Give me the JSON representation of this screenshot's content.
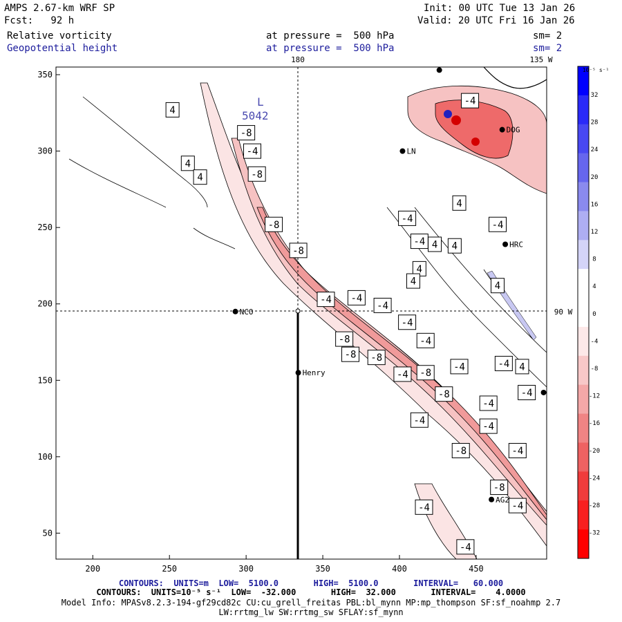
{
  "header": {
    "model": "AMPS 2.67-km WRF SP",
    "init": "Init: 00 UTC Tue 13 Jan 26",
    "forecast": "Fcst:   92 h",
    "valid": "Valid: 20 UTC Fri 16 Jan 26",
    "field1": "Relative vorticity",
    "field1_level": "at pressure =  500 hPa",
    "field1_sm": "sm= 2",
    "field2": "Geopotential height",
    "field2_level": "at pressure =  500 hPa",
    "field2_sm": "sm= 2"
  },
  "map": {
    "x_ticks": [
      "200",
      "250",
      "300",
      "350",
      "400",
      "450"
    ],
    "y_ticks": [
      "350",
      "300",
      "250",
      "200",
      "150",
      "100",
      "50"
    ],
    "lon_labels": {
      "top": "180",
      "top_right": "135 W",
      "right": "90 W"
    },
    "stations": [
      {
        "name": "NCO",
        "x": 293,
        "y": 195
      },
      {
        "name": "Henry",
        "x": 334,
        "y": 155
      },
      {
        "name": "LN",
        "x": 402,
        "y": 300
      },
      {
        "name": "DOG",
        "x": 467,
        "y": 314
      },
      {
        "name": "HRC",
        "x": 469,
        "y": 239
      },
      {
        "name": "AG2",
        "x": 460,
        "y": 72
      },
      {
        "name": "",
        "x": 494,
        "y": 142
      },
      {
        "name": "",
        "x": 426,
        "y": 353
      }
    ],
    "height_label": {
      "letter": "L",
      "value": "5042",
      "x": 304,
      "y": 330
    },
    "contour_labels": [
      {
        "v": "4",
        "x": 252,
        "y": 327
      },
      {
        "v": "4",
        "x": 262,
        "y": 292
      },
      {
        "v": "4",
        "x": 270,
        "y": 283
      },
      {
        "v": "-8",
        "x": 300,
        "y": 312
      },
      {
        "v": "-4",
        "x": 304,
        "y": 300
      },
      {
        "v": "-8",
        "x": 307,
        "y": 285
      },
      {
        "v": "-8",
        "x": 318,
        "y": 252
      },
      {
        "v": "-8",
        "x": 334,
        "y": 235
      },
      {
        "v": "-4",
        "x": 352,
        "y": 203
      },
      {
        "v": "-4",
        "x": 372,
        "y": 204
      },
      {
        "v": "-4",
        "x": 389,
        "y": 199
      },
      {
        "v": "-4",
        "x": 405,
        "y": 188
      },
      {
        "v": "-8",
        "x": 364,
        "y": 177
      },
      {
        "v": "-8",
        "x": 368,
        "y": 167
      },
      {
        "v": "-8",
        "x": 385,
        "y": 165
      },
      {
        "v": "-4",
        "x": 402,
        "y": 154
      },
      {
        "v": "-8",
        "x": 417,
        "y": 155
      },
      {
        "v": "-8",
        "x": 429,
        "y": 141
      },
      {
        "v": "-4",
        "x": 417,
        "y": 176
      },
      {
        "v": "-4",
        "x": 439,
        "y": 159
      },
      {
        "v": "-4",
        "x": 468,
        "y": 161
      },
      {
        "v": "4",
        "x": 480,
        "y": 159
      },
      {
        "v": "-4",
        "x": 483,
        "y": 142
      },
      {
        "v": "-4",
        "x": 458,
        "y": 135
      },
      {
        "v": "-4",
        "x": 458,
        "y": 120
      },
      {
        "v": "-4",
        "x": 413,
        "y": 124
      },
      {
        "v": "-8",
        "x": 440,
        "y": 104
      },
      {
        "v": "-4",
        "x": 477,
        "y": 104
      },
      {
        "v": "-8",
        "x": 465,
        "y": 80
      },
      {
        "v": "-4",
        "x": 477,
        "y": 68
      },
      {
        "v": "-4",
        "x": 416,
        "y": 67
      },
      {
        "v": "-4",
        "x": 443,
        "y": 41
      },
      {
        "v": "-4",
        "x": 446,
        "y": 333
      },
      {
        "v": "4",
        "x": 439,
        "y": 266
      },
      {
        "v": "-4",
        "x": 405,
        "y": 256
      },
      {
        "v": "-4",
        "x": 413,
        "y": 241
      },
      {
        "v": "4",
        "x": 423,
        "y": 239
      },
      {
        "v": "4",
        "x": 436,
        "y": 238
      },
      {
        "v": "4",
        "x": 413,
        "y": 223
      },
      {
        "v": "4",
        "x": 409,
        "y": 215
      },
      {
        "v": "-4",
        "x": 464,
        "y": 252
      },
      {
        "v": "4",
        "x": 464,
        "y": 212
      }
    ]
  },
  "colorbar": {
    "unit": "10⁻⁵ s⁻¹",
    "labels": [
      "32",
      "28",
      "24",
      "20",
      "16",
      "12",
      "8",
      "4",
      "0",
      "-4",
      "-8",
      "-12",
      "-16",
      "-20",
      "-24",
      "-28",
      "-32"
    ],
    "colors": [
      "#0000ff",
      "#2a2af8",
      "#4848f2",
      "#6666ee",
      "#8a8aee",
      "#aeaef2",
      "#d4d4f8",
      "#ffffff",
      "#ffffff",
      "#fde8e8",
      "#f8c8c8",
      "#f4a8a8",
      "#f08484",
      "#ee6262",
      "#f03c3c",
      "#f82020",
      "#ff0000"
    ]
  },
  "footer": {
    "contours1": "CONTOURS:  UNITS=m  LOW=  5100.0       HIGH=  5100.0       INTERVAL=   60.000",
    "contours2": "CONTOURS:  UNITS=10⁻⁵ s⁻¹  LOW=  -32.000       HIGH=  32.000       INTERVAL=    4.0000",
    "model_info": "Model Info: MPASv8.2.3-194-gf29cd82c CU:cu_grell_freitas PBL:bl_mynn MP:mp_thompson SF:sf_noahmp 2.7",
    "physics": "LW:rrtmg_lw SW:rrtmg_sw SFLAY:sf_mynn"
  }
}
